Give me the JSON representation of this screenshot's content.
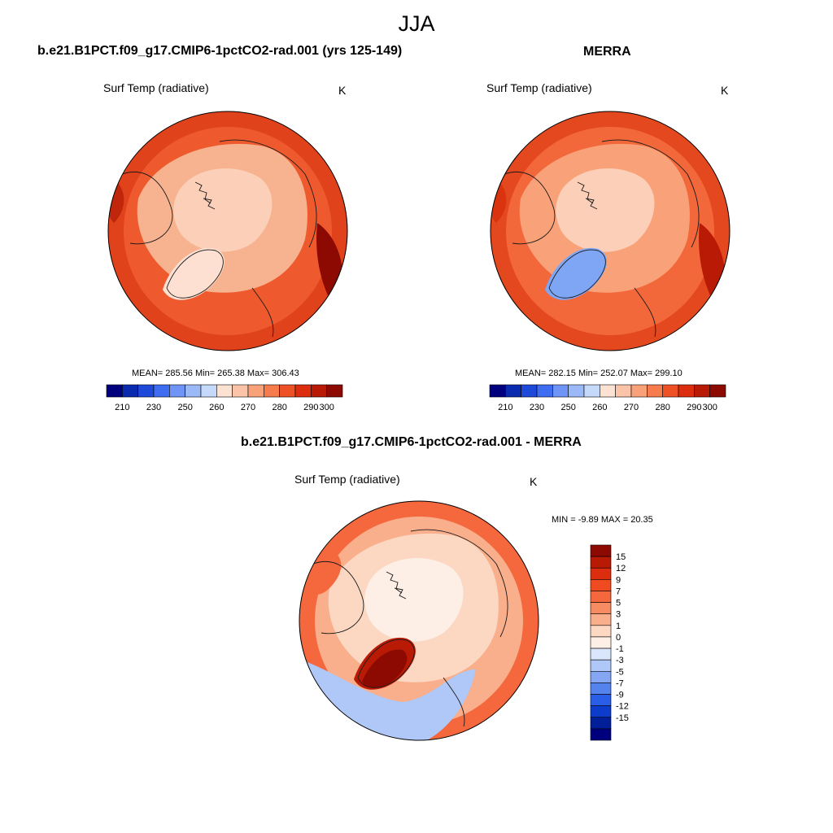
{
  "figure": {
    "title": "JJA"
  },
  "panels": [
    {
      "title": "b.e21.B1PCT.f09_g17.CMIP6-1pctCO2-rad.001 (yrs 125-149)",
      "variable": "Surf Temp (radiative)",
      "units": "K",
      "stats": "MEAN= 285.56  Min= 265.38  Max= 306.43",
      "colorbar": {
        "colors": [
          "#00007f",
          "#0a2ab0",
          "#1f49d9",
          "#3f6df2",
          "#6e95f5",
          "#9bb9f7",
          "#c5d9fa",
          "#fbe2d3",
          "#fbc4a8",
          "#f9a27a",
          "#f67c4e",
          "#ef5127",
          "#dc2e0f",
          "#b81a06",
          "#8c0a02"
        ],
        "labels": [
          "210",
          "230",
          "250",
          "260",
          "270",
          "280",
          "290",
          "300"
        ]
      },
      "map": {
        "base": "#ee5a2d",
        "outer": "#e0421c",
        "north": "#f7b28f",
        "pole": "#fbcfb8",
        "cold": "#fde0d2",
        "deep": "#c0260c",
        "darkest": "#8c0a02"
      }
    },
    {
      "title": "MERRA",
      "variable": "Surf Temp (radiative)",
      "units": "K",
      "stats": "MEAN= 282.15  Min= 252.07  Max= 299.10",
      "colorbar": {
        "colors": [
          "#00007f",
          "#0a2ab0",
          "#1f49d9",
          "#3f6df2",
          "#6e95f5",
          "#9bb9f7",
          "#c5d9fa",
          "#fbe2d3",
          "#fbc4a8",
          "#f9a27a",
          "#f67c4e",
          "#ef5127",
          "#dc2e0f",
          "#b81a06",
          "#8c0a02"
        ],
        "labels": [
          "210",
          "230",
          "250",
          "260",
          "270",
          "280",
          "290",
          "300"
        ]
      },
      "map": {
        "base": "#f2683a",
        "outer": "#e4481f",
        "north": "#f9a27a",
        "pole": "#fbcfb8",
        "cold": "#7fa6f5",
        "deep": "#d9340f",
        "darkest": "#b81a06"
      }
    }
  ],
  "diff": {
    "title": "b.e21.B1PCT.f09_g17.CMIP6-1pctCO2-rad.001 - MERRA",
    "variable": "Surf Temp (radiative)",
    "units": "K",
    "minmax": "MIN =  -9.89 MAX =  20.35",
    "colorbar": {
      "colors": [
        "#8c0a02",
        "#b81a06",
        "#dc2e0f",
        "#ef4a20",
        "#f5683d",
        "#f78c62",
        "#f9ae8c",
        "#fcd8c2",
        "#fdefe6",
        "#d9e6fb",
        "#b0c8f7",
        "#85a7f3",
        "#5583ee",
        "#2a5ee6",
        "#0d3ccc",
        "#001f99",
        "#00007f"
      ],
      "labels": [
        "15",
        "12",
        "9",
        "7",
        "5",
        "3",
        "1",
        "0",
        "-1",
        "-3",
        "-5",
        "-7",
        "-9",
        "-12",
        "-15"
      ]
    },
    "map": {
      "base": "#f9ae8c",
      "outer": "#f5683d",
      "north": "#fcd8c2",
      "pole": "#fdefe6",
      "cold": "#b0c8f7",
      "deep": "#b81a06",
      "darkest": "#8c0a02"
    }
  }
}
